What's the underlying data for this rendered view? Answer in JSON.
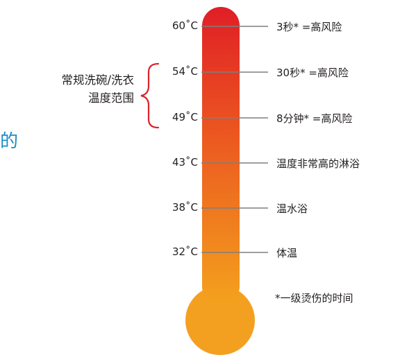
{
  "colors": {
    "mercury_top": "#e01e26",
    "mercury_mid": "#ef6c1e",
    "mercury_bottom": "#f4a21d",
    "bulb": "#f3a021",
    "brace": "#d8232a",
    "tick_line": "#7f7f7f",
    "left_fragment": "#1a8bc7"
  },
  "left_fragment": "的",
  "range_label": {
    "line1": "常规洗碗/洗衣",
    "line2": "温度范围"
  },
  "levels": [
    {
      "temp": "60˚C",
      "desc": "3秒* =高风险"
    },
    {
      "temp": "54˚C",
      "desc": "30秒* =高风险"
    },
    {
      "temp": "49˚C",
      "desc": "8分钟* =高风险"
    },
    {
      "temp": "43˚C",
      "desc": "温度非常高的淋浴"
    },
    {
      "temp": "38˚C",
      "desc": "温水浴"
    },
    {
      "temp": "32˚C",
      "desc": "体温"
    }
  ],
  "footnote": "*一级烫伤的时间"
}
